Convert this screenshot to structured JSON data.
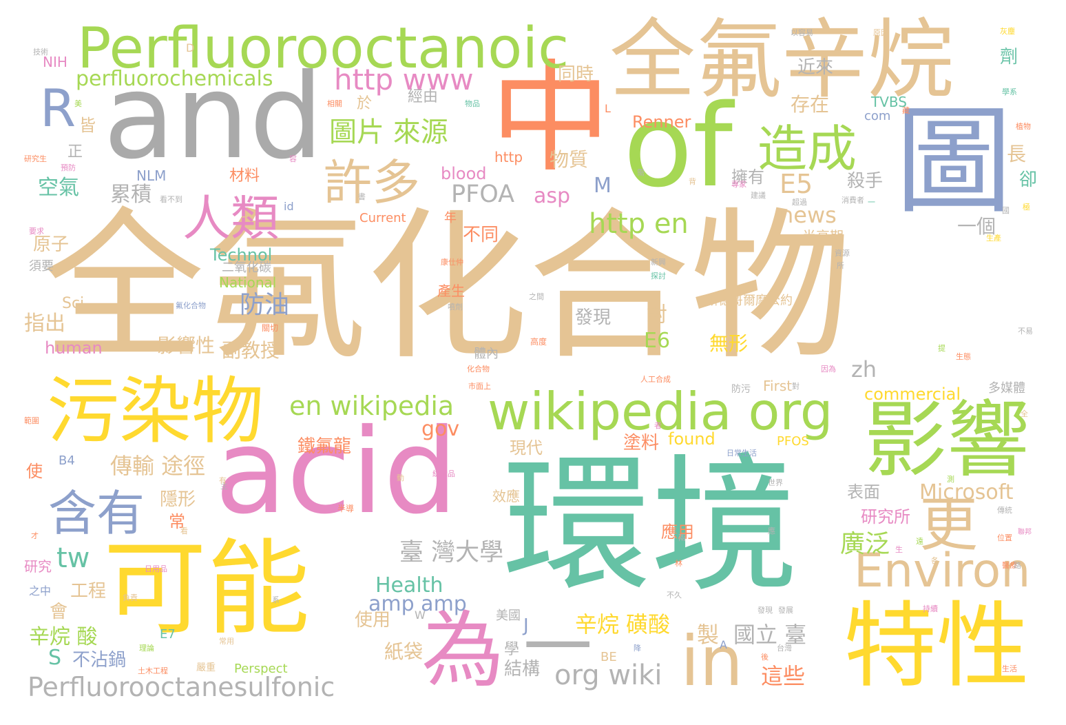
{
  "palette": {
    "tan": "#e5c494",
    "green": "#a6d854",
    "teal": "#66c2a5",
    "pink": "#e78ac3",
    "yellow": "#ffd92f",
    "orange": "#fc8d62",
    "blue": "#8da0cb",
    "gray": "#b3b3b3"
  },
  "words": {
    "quanfu_huahewu": "全氟化合物",
    "huanjing": "環境",
    "acid": "acid",
    "and": "and",
    "zhong": "中",
    "of": "of",
    "quanfu_xinwan": "全氟辛烷",
    "tu": "圖",
    "perfluorooctanoic": "Perfluorooctanoic",
    "keneng": "可能",
    "wuranwu": "污染物",
    "wei": "為",
    "texing": "特性",
    "yingxiang": "影響",
    "wikipedia_org": "wikipedia org",
    "in": "in",
    "environ": "Environ",
    "geng": "更",
    "renlei": "人類",
    "hanyou": "含有",
    "zaocheng": "造成",
    "xuduo": "許多",
    "R": "R",
    "http_www": "http www",
    "tupian_laiyuan": "圖片 來源",
    "perfluorochemicals": "perfluorochemicals",
    "en_wikipedia": "en wikipedia",
    "http_en": "http en",
    "perfluorooctanesulfonic": "Perfluorooctanesulfonic",
    "org_wiki": "org wiki",
    "yi": "一",
    "E5": "E5",
    "PFOA": "PFOA",
    "news": "news",
    "microsoft": "Microsoft",
    "tw": "tw",
    "health": "Health",
    "amp_amp": "amp amp",
    "xinwan_huangsuan": "辛烷 磺酸",
    "taiwan_daxue": "臺 灣大學",
    "guangfan": "廣泛",
    "fangyou": "防油",
    "E6": "E6",
    "wuxing": "無形",
    "zh": "zh",
    "commercial": "commercial",
    "gov": "gov",
    "zhiyu": "製",
    "guoli_tai": "國立 臺",
    "zhexie": "這些",
    "jiegou": "結構",
    "chuanshu_tujing": "傳輸 途徑",
    "kongqi": "空氣",
    "leiji": "累積",
    "zhichu": "指出",
    "yingxiangxing": "影響性",
    "fujiaoshou": "副教授",
    "xinwan_suan": "辛烷 酸",
    "S": "S",
    "buzhanguo": "不沾鍋",
    "zhidai": "紙袋",
    "shiyong": "使用",
    "gongcheng": "工程",
    "hui": "會",
    "J": "J",
    "M": "M",
    "asp": "asp",
    "blood": "blood",
    "wuzhi": "物質",
    "tongshi": "同時",
    "jinlai": "近來",
    "cunzai": "存在",
    "yongyou": "擁有",
    "shashou": "殺手",
    "yige": "一個",
    "bantongqi": "半衰期",
    "sidegeermo": "斯德哥爾摩公約",
    "fayian": "發現",
    "dui": "對",
    "budong": "不同",
    "technol": "Technol",
    "national": "National",
    "yuanzi": "原子",
    "sci": "Sci",
    "human": "human",
    "tiefulong": "鐵氟龍",
    "tuliao": "塗料",
    "found": "found",
    "xiandai": "現代",
    "yinxing": "隱形",
    "chang": "常",
    "xiaoying": "效應",
    "biaomian": "表面",
    "yanjiusuo": "研究所",
    "yingyong": "應用",
    "renner": "Renner",
    "current": "Current",
    "TVBS": "TVBS",
    "com": "com",
    "NLM": "NLM",
    "NIH": "NIH",
    "http_small": "http",
    "cailiao": "材料",
    "jingyou": "經由",
    "yu": "於",
    "jie": "皆",
    "zheng": "正",
    "chang2": "長",
    "que": "卻",
    "ji": "劑",
    "first": "First",
    "PFOS": "PFOS",
    "B4": "B4",
    "E7": "E7",
    "BE": "BE",
    "perspect": "Perspect",
    "shi": "使",
    "yanjiu": "研究",
    "zhizhong": "之中",
    "xuyao": "須要",
    "ercanghuatan": "二氧化碳",
    "chansheng": "產生",
    "tinei": "體內",
    "meiguo": "美國",
    "xue": "學",
    "duomeiti": "多媒體",
    "nian": "年",
    "id": "id",
    "D": "D",
    "L": "L",
    "W": "W",
    "A": "A",
    "small_faxian": "發現",
    "small_yanzhong": "嚴重",
    "small_fanghu": "防污",
    "small_rengong": "人工合成",
    "small_gaodu": "高度",
    "small_riyong": "日用品",
    "small_shengtai": "生態",
    "small_buyi": "不易",
    "small_bandao": "半導",
    "small_fangzhi": "紡織品",
    "small_richang": "日常生活",
    "small_yinwei": "因為",
    "small_ziyuan": "資源",
    "small_rongyi": "以容易",
    "small_huise": "灰塵",
    "small_wuzhi2": "物品",
    "small_xiangguan": "相關",
    "small_mei": "美",
    "small_yanjiusheng": "研究生",
    "small_yufang": "預防",
    "small_kanbudao": "看不到",
    "small_quanfuhuahewu": "氟化合物",
    "small_guanqie": "關切",
    "small_penji": "噴劑",
    "small_zhijian": "之間",
    "small_xinxing": "新興",
    "small_tanpai": "探討",
    "small_kangfu": "康仕仲",
    "small_shengchan": "生產",
    "small_suo": "所",
    "small_xuehui": "學系",
    "small_zhiwu": "植物",
    "small_chuanru": "傳統",
    "small_ji": "極",
    "small_jianyi": "建議",
    "small_zhuanjia": "專家",
    "small_tumu": "土木工程",
    "small_shichang": "市面上",
    "small_huahewu": "化合物",
    "small_zhuying": "著",
    "small_yuan": "遠",
    "small_hou": "後",
    "small_shenghuo": "生活",
    "small_kaizhan": "發展",
    "small_fuzhong": "負責",
    "small_changyong": "常用",
    "small_taiwan": "台灣",
    "small_yiliao": "醫療",
    "small_chixu": "持續",
    "small_weizhi": "位置",
    "small_yaoqiu": "要求",
    "small_fanwei": "範圍",
    "small_lilun": "理論",
    "small_dui": "對",
    "small_cai": "才",
    "small_bei": "背",
    "small_xu": "需",
    "small_liang": "兩",
    "small_guo": "國",
    "small_sheng": "生",
    "small_zhu": "主",
    "small_ge": "各",
    "small_ti": "提",
    "small_lianbang": "聯邦",
    "small_lin": "林",
    "small_xi": "系",
    "small_yi2": "一",
    "small_chaoguo": "超過",
    "small_rong": "容",
    "small_bujiu": "不久",
    "small_cang": "藏",
    "small_quan": "全",
    "small_dong": "動",
    "small_you": "有",
    "small_zhe": "者",
    "small_xiaofei": "消費者",
    "small_shijie": "世界",
    "small_lu": "路",
    "small_jiang": "降",
    "small_shu": "書",
    "small_kan": "看",
    "small_jishu": "技術",
    "small_yuanyin": "原因",
    "small_ying": "應",
    "small_ce": "測"
  }
}
